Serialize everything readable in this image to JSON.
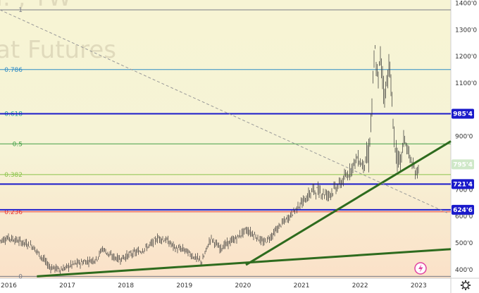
{
  "chart_data": {
    "type": "line",
    "watermark": {
      "line1": "I. , TW",
      "line2": "at Futures"
    },
    "y_axis": {
      "ticks": [
        {
          "value": 1400,
          "label": "1400'0"
        },
        {
          "value": 1300,
          "label": "1300'0"
        },
        {
          "value": 1200,
          "label": "1200'0"
        },
        {
          "value": 1100,
          "label": "1100'0"
        },
        {
          "value": 900,
          "label": "900'0"
        },
        {
          "value": 700,
          "label": "700'0"
        },
        {
          "value": 600,
          "label": "600'0"
        },
        {
          "value": 500,
          "label": "500'0"
        },
        {
          "value": 400,
          "label": "400'0"
        }
      ],
      "range": [
        368,
        1412
      ]
    },
    "x_axis": {
      "labels": [
        "2016",
        "2017",
        "2018",
        "2019",
        "2020",
        "2021",
        "2022",
        "2023"
      ],
      "range_years": [
        2015.85,
        2023.55
      ]
    },
    "fib_levels": [
      {
        "label": "1",
        "value": 1375,
        "color": "#787b86"
      },
      {
        "label": "0.786",
        "value": 1151,
        "color": "#2f8cc6"
      },
      {
        "label": "0.618",
        "value": 985,
        "color": "#26a69a"
      },
      {
        "label": "0.5",
        "value": 872,
        "color": "#43a047"
      },
      {
        "label": "0.382",
        "value": 757,
        "color": "#8bc34a"
      },
      {
        "label": "0.236",
        "value": 617,
        "color": "#e53935"
      },
      {
        "label": "0",
        "value": 375,
        "color": "#787b86"
      }
    ],
    "price_tags": [
      {
        "value": 985.25,
        "label": "985'4",
        "color": "#1a1acb"
      },
      {
        "value": 795.25,
        "label": "795'4",
        "color": "#cfe8c8",
        "text_color": "#222"
      },
      {
        "value": 721.25,
        "label": "721'4",
        "color": "#1a1acb"
      },
      {
        "value": 624.75,
        "label": "624'6",
        "color": "#1a1acb"
      }
    ],
    "horizontal_lines": [
      {
        "value": 985.25,
        "color": "#1a1acb"
      },
      {
        "value": 721.25,
        "color": "#1a1acb"
      },
      {
        "value": 624.75,
        "color": "#1a1acb"
      }
    ],
    "trendlines": [
      {
        "from": [
          2016.48,
          375
        ],
        "to": [
          2023.55,
          477
        ],
        "color": "#2e6b1e"
      },
      {
        "from": [
          2020.05,
          418
        ],
        "to": [
          2023.55,
          882
        ],
        "color": "#2e6b1e"
      },
      {
        "from": [
          2015.85,
          1375
        ],
        "to": [
          2023.5,
          612
        ],
        "color": "#999999",
        "dashed": true
      }
    ],
    "price_series": {
      "name": "",
      "x": [
        2015.85,
        2016.0,
        2016.2,
        2016.4,
        2016.55,
        2016.7,
        2016.9,
        2017.1,
        2017.3,
        2017.5,
        2017.6,
        2017.75,
        2017.9,
        2018.1,
        2018.25,
        2018.4,
        2018.55,
        2018.7,
        2018.85,
        2019.0,
        2019.15,
        2019.3,
        2019.45,
        2019.6,
        2019.75,
        2019.9,
        2020.05,
        2020.2,
        2020.35,
        2020.5,
        2020.65,
        2020.8,
        2020.95,
        2021.05,
        2021.2,
        2021.35,
        2021.45,
        2021.55,
        2021.65,
        2021.8,
        2021.95,
        2022.05,
        2022.15,
        2022.2,
        2022.25,
        2022.3,
        2022.35,
        2022.42,
        2022.5,
        2022.55,
        2022.6,
        2022.68,
        2022.75,
        2022.85,
        2022.95,
        2023.0
      ],
      "values": [
        510,
        520,
        505,
        490,
        450,
        410,
        400,
        420,
        430,
        440,
        480,
        450,
        440,
        460,
        470,
        490,
        520,
        510,
        480,
        475,
        450,
        430,
        520,
        480,
        500,
        520,
        550,
        530,
        500,
        530,
        570,
        600,
        640,
        660,
        700,
        690,
        680,
        700,
        720,
        760,
        820,
        790,
        830,
        1000,
        1230,
        1100,
        1200,
        1050,
        1180,
        1000,
        850,
        780,
        900,
        820,
        760,
        780
      ]
    },
    "lightning_icon": "lightning-icon",
    "settings_icon": "gear-icon",
    "colors": {
      "bg_top": "#f7f4d4",
      "bg_bottom": "#fbe0c8",
      "candles": "#333333"
    }
  }
}
